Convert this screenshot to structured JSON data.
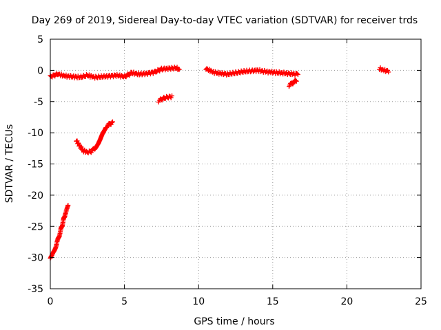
{
  "chart_data": {
    "type": "scatter",
    "title": "Day 269 of 2019, Sidereal Day-to-day VTEC variation (SDTVAR) for receiver trds",
    "xlabel": "GPS time / hours",
    "ylabel": "SDTVAR / TECUs",
    "xlim": [
      0,
      25
    ],
    "ylim": [
      -35,
      5
    ],
    "xticks": [
      0,
      5,
      10,
      15,
      20,
      25
    ],
    "yticks": [
      -35,
      -30,
      -25,
      -20,
      -15,
      -10,
      -5,
      0,
      5
    ],
    "grid": true,
    "series_color": "#ff0000",
    "segments": [
      {
        "name": "pass-1",
        "x": [
          0.0,
          0.2,
          0.4,
          0.6,
          0.8,
          1.0,
          1.2
        ],
        "y": [
          -30.0,
          -29.2,
          -28.0,
          -26.5,
          -24.8,
          -23.0,
          -21.8
        ]
      },
      {
        "name": "pass-2",
        "x": [
          1.75,
          2.0,
          2.25,
          2.5,
          2.75,
          3.0,
          3.25,
          3.5,
          3.75,
          4.0,
          4.2
        ],
        "y": [
          -11.2,
          -12.2,
          -12.9,
          -13.1,
          -13.0,
          -12.5,
          -11.5,
          -10.2,
          -9.1,
          -8.6,
          -8.4
        ]
      },
      {
        "name": "pass-3",
        "x": [
          0.0,
          0.5,
          1.0,
          1.5,
          2.0,
          2.5,
          3.0,
          3.5,
          4.0,
          4.5,
          5.0,
          5.5,
          6.0,
          6.5,
          7.0,
          7.5,
          8.0,
          8.5,
          8.7
        ],
        "y": [
          -1.0,
          -0.6,
          -0.9,
          -1.0,
          -1.1,
          -0.8,
          -1.1,
          -1.0,
          -0.9,
          -0.8,
          -1.0,
          -0.4,
          -0.6,
          -0.5,
          -0.3,
          0.2,
          0.3,
          0.4,
          0.1
        ]
      },
      {
        "name": "pass-4",
        "x": [
          7.3,
          7.6,
          7.9,
          8.2
        ],
        "y": [
          -4.9,
          -4.5,
          -4.3,
          -4.2
        ]
      },
      {
        "name": "pass-5",
        "x": [
          10.5,
          11.0,
          11.5,
          12.0,
          12.5,
          13.0,
          13.5,
          14.0,
          14.5,
          15.0,
          15.5,
          16.0,
          16.5,
          16.7
        ],
        "y": [
          0.3,
          -0.3,
          -0.5,
          -0.6,
          -0.4,
          -0.2,
          -0.1,
          0.0,
          -0.2,
          -0.3,
          -0.4,
          -0.5,
          -0.6,
          -0.5
        ]
      },
      {
        "name": "pass-6",
        "x": [
          16.1,
          16.35,
          16.6
        ],
        "y": [
          -2.4,
          -2.0,
          -1.6
        ]
      },
      {
        "name": "pass-7",
        "x": [
          22.2,
          22.5,
          22.8
        ],
        "y": [
          0.3,
          0.0,
          -0.1
        ]
      }
    ]
  }
}
